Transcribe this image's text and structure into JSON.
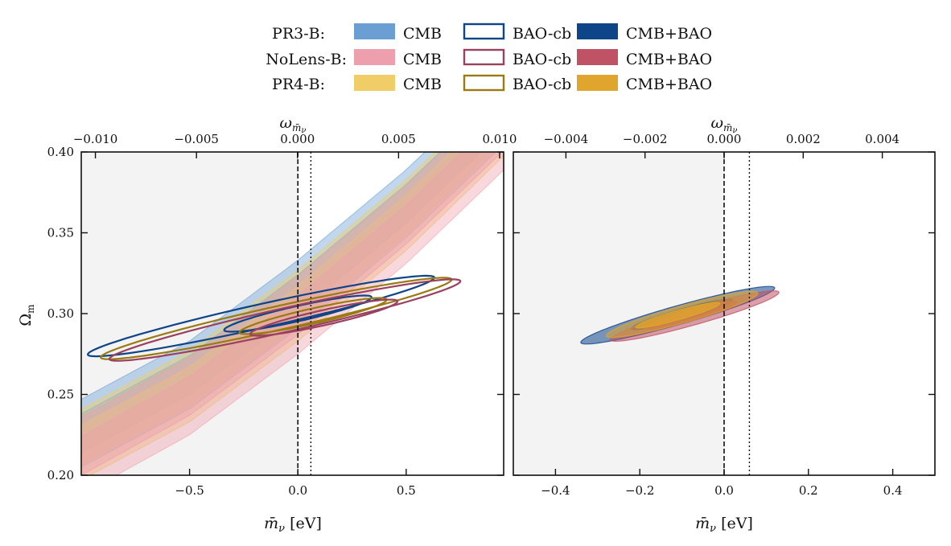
{
  "legend": {
    "rows": [
      {
        "label": "PR3-B:",
        "cmb_color": "#6b9fd4",
        "line_color": "#0e4488",
        "combo_color": "#0e4488"
      },
      {
        "label": "NoLens-B:",
        "cmb_color": "#ee9fae",
        "line_color": "#9a4060",
        "combo_color": "#c05265"
      },
      {
        "label": "PR4-B:",
        "cmb_color": "#f0cd66",
        "line_color": "#9a7b12",
        "combo_color": "#e0a52c"
      }
    ],
    "cmb_label": "CMB",
    "bao_label": "BAO-cb",
    "combo_label": "CMB+BAO"
  },
  "chart_data": [
    {
      "type": "contour",
      "panel": "left",
      "xlabel": "m̄ν [eV]",
      "ylabel": "Ωm",
      "top_xlabel": "ωm̄ν",
      "xlim": [
        -1.0,
        0.95
      ],
      "ylim": [
        0.2,
        0.4
      ],
      "top_xlim": [
        -0.0107,
        0.0102
      ],
      "xticks": [
        -0.5,
        0.0,
        0.5
      ],
      "xtick_labels": [
        "−0.5",
        "0.0",
        "0.5"
      ],
      "yticks": [
        0.2,
        0.25,
        0.3,
        0.35,
        0.4
      ],
      "ytick_labels": [
        "0.20",
        "0.25",
        "0.30",
        "0.35",
        "0.40"
      ],
      "top_xticks": [
        -0.01,
        -0.005,
        0.0,
        0.005,
        0.01
      ],
      "top_xtick_labels": [
        "−0.010",
        "−0.005",
        "0.000",
        "0.005",
        "0.010"
      ],
      "shaded_region": [
        -1.0,
        0.0
      ],
      "vlines": [
        {
          "x": 0.0,
          "style": "dashed"
        },
        {
          "x": 0.06,
          "style": "dotted"
        }
      ],
      "series": [
        {
          "name": "PR3-B CMB",
          "kind": "band",
          "color": "#6b9fd4",
          "center": [
            [
              -1.0,
              0.226
            ],
            [
              -0.5,
              0.262
            ],
            [
              0.0,
              0.312
            ],
            [
              0.5,
              0.368
            ],
            [
              0.75,
              0.4
            ]
          ],
          "halfwidth95": 0.021,
          "halfwidth68": 0.012
        },
        {
          "name": "PR4-B CMB",
          "kind": "band",
          "color": "#f0cd66",
          "center": [
            [
              -1.0,
              0.219
            ],
            [
              -0.5,
              0.255
            ],
            [
              0.0,
              0.305
            ],
            [
              0.5,
              0.361
            ],
            [
              0.8,
              0.4
            ]
          ],
          "halfwidth95": 0.022,
          "halfwidth68": 0.012
        },
        {
          "name": "NoLens-B CMB",
          "kind": "band",
          "color": "#ee9fae",
          "center": [
            [
              -1.0,
              0.212
            ],
            [
              -0.5,
              0.249
            ],
            [
              0.0,
              0.299
            ],
            [
              0.5,
              0.355
            ],
            [
              0.85,
              0.4
            ]
          ],
          "halfwidth95": 0.024,
          "halfwidth68": 0.012
        },
        {
          "name": "PR3-B BAO-cb",
          "kind": "contour",
          "color": "#0e4488",
          "outer": {
            "cx": -0.17,
            "cy": 0.2985,
            "rx": 0.8,
            "ry": 0.0075,
            "slope": 0.0297
          },
          "inner": {
            "cx": 0.0,
            "cy": 0.3,
            "rx": 0.34,
            "ry": 0.0048,
            "slope": 0.0297
          }
        },
        {
          "name": "PR4-B BAO-cb",
          "kind": "contour",
          "color": "#9a7b12",
          "outer": {
            "cx": -0.1,
            "cy": 0.297,
            "rx": 0.81,
            "ry": 0.0075,
            "slope": 0.0297
          },
          "inner": {
            "cx": 0.07,
            "cy": 0.2985,
            "rx": 0.34,
            "ry": 0.0048,
            "slope": 0.0297
          }
        },
        {
          "name": "NoLens-B BAO-cb",
          "kind": "contour",
          "color": "#9a4060",
          "outer": {
            "cx": -0.06,
            "cy": 0.296,
            "rx": 0.81,
            "ry": 0.0075,
            "slope": 0.0297
          },
          "inner": {
            "cx": 0.12,
            "cy": 0.2975,
            "rx": 0.34,
            "ry": 0.0048,
            "slope": 0.0297
          }
        }
      ]
    },
    {
      "type": "contour",
      "panel": "right",
      "xlabel": "m̄ν [eV]",
      "ylabel": "",
      "top_xlabel": "ωm̄ν",
      "xlim": [
        -0.5,
        0.5
      ],
      "ylim": [
        0.2,
        0.4
      ],
      "top_xlim": [
        -0.00533,
        0.00533
      ],
      "xticks": [
        -0.4,
        -0.2,
        0.0,
        0.2,
        0.4
      ],
      "xtick_labels": [
        "−0.4",
        "−0.2",
        "0.0",
        "0.2",
        "0.4"
      ],
      "yticks": [
        0.2,
        0.25,
        0.3,
        0.35,
        0.4
      ],
      "ytick_labels": [
        "",
        "",
        "",
        "",
        ""
      ],
      "top_xticks": [
        -0.004,
        -0.002,
        0.0,
        0.002,
        0.004
      ],
      "top_xtick_labels": [
        "−0.004",
        "−0.002",
        "0.000",
        "0.002",
        "0.004"
      ],
      "shaded_region": [
        -0.5,
        0.0
      ],
      "vlines": [
        {
          "x": 0.0,
          "style": "dashed"
        },
        {
          "x": 0.06,
          "style": "dotted"
        }
      ],
      "series": [
        {
          "name": "PR3-B CMB+BAO",
          "kind": "filled-contour",
          "color": "#0e4488",
          "outer": {
            "cx": -0.11,
            "cy": 0.299,
            "rx": 0.23,
            "ry": 0.006,
            "slope": 0.073
          },
          "inner": {
            "cx": -0.1,
            "cy": 0.2995,
            "rx": 0.12,
            "ry": 0.0035,
            "slope": 0.073
          }
        },
        {
          "name": "NoLens-B CMB+BAO",
          "kind": "filled-contour",
          "color": "#c05265",
          "outer": {
            "cx": -0.07,
            "cy": 0.2985,
            "rx": 0.2,
            "ry": 0.0055,
            "slope": 0.073
          },
          "inner": {
            "cx": -0.08,
            "cy": 0.299,
            "rx": 0.11,
            "ry": 0.0033,
            "slope": 0.073
          }
        },
        {
          "name": "PR4-B CMB+BAO",
          "kind": "filled-contour",
          "color": "#e0a52c",
          "outer": {
            "cx": -0.1,
            "cy": 0.2995,
            "rx": 0.18,
            "ry": 0.0055,
            "slope": 0.073
          },
          "inner": {
            "cx": -0.11,
            "cy": 0.299,
            "rx": 0.1,
            "ry": 0.003,
            "slope": 0.073
          }
        }
      ]
    }
  ]
}
